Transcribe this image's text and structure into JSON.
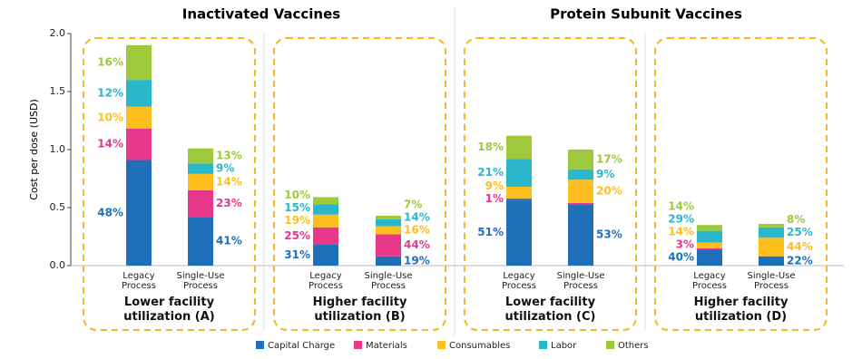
{
  "chart_data": {
    "type": "stacked_bar",
    "panel_titles": [
      "Inactivated Vaccines",
      "Protein Subunit Vaccines"
    ],
    "group_labels": [
      "Lower facility utilization (A)",
      "Higher facility utilization (B)",
      "Lower facility utilization (C)",
      "Higher facility utilization (D)"
    ],
    "categories": [
      "Legacy Process",
      "Single-Use Process",
      "Legacy Process",
      "Single-Use Process",
      "Legacy Process",
      "Single-Use Process",
      "Legacy Process",
      "Single-Use Process"
    ],
    "ylabel": "Cost per dose (USD)",
    "ylim": [
      0,
      2
    ],
    "yticks": [
      {
        "value": 0,
        "label": "0.0"
      },
      0.5,
      {
        "value": 1,
        "label": "1.0"
      },
      1.5,
      {
        "value": 2,
        "label": "2.0"
      }
    ],
    "series": [
      {
        "name": "Capital Charge",
        "color": "#1f6fba",
        "values": [
          0.91,
          0.42,
          0.18,
          0.08,
          0.57,
          0.53,
          0.14,
          0.08
        ],
        "shares": [
          48,
          41,
          31,
          19,
          51,
          53,
          40,
          22
        ],
        "share_labels": [
          "48%",
          "41%",
          "31%",
          "19%",
          "51%",
          "53%",
          "40%",
          "22%"
        ]
      },
      {
        "name": "Materials",
        "color": "#e8388c",
        "values": [
          0.27,
          0.23,
          0.15,
          0.19,
          0.01,
          0.01,
          0.01,
          0
        ],
        "shares": [
          14,
          23,
          25,
          44,
          1,
          null,
          3,
          null
        ],
        "share_labels": [
          "14%",
          "23%",
          "25%",
          "44%",
          "1%",
          null,
          "3%",
          null
        ]
      },
      {
        "name": "Consumables",
        "color": "#fcbf1e",
        "values": [
          0.19,
          0.14,
          0.11,
          0.07,
          0.1,
          0.2,
          0.05,
          0.16
        ],
        "shares": [
          10,
          14,
          19,
          16,
          9,
          20,
          14,
          44
        ],
        "share_labels": [
          "10%",
          "14%",
          "19%",
          "16%",
          "9%",
          "20%",
          "14%",
          "44%"
        ]
      },
      {
        "name": "Labor",
        "color": "#2ab7cb",
        "values": [
          0.23,
          0.09,
          0.09,
          0.06,
          0.24,
          0.09,
          0.1,
          0.09
        ],
        "shares": [
          12,
          9,
          15,
          14,
          21,
          9,
          29,
          25
        ],
        "share_labels": [
          "12%",
          "9%",
          "15%",
          "14%",
          "21%",
          "9%",
          "29%",
          "25%"
        ]
      },
      {
        "name": "Others",
        "color": "#9dc93b",
        "values": [
          0.3,
          0.13,
          0.06,
          0.03,
          0.2,
          0.17,
          0.05,
          0.03
        ],
        "shares": [
          16,
          13,
          10,
          7,
          18,
          17,
          14,
          8
        ],
        "share_labels": [
          "16%",
          "13%",
          "10%",
          "7%",
          "18%",
          "17%",
          "14%",
          "8%"
        ]
      }
    ]
  }
}
